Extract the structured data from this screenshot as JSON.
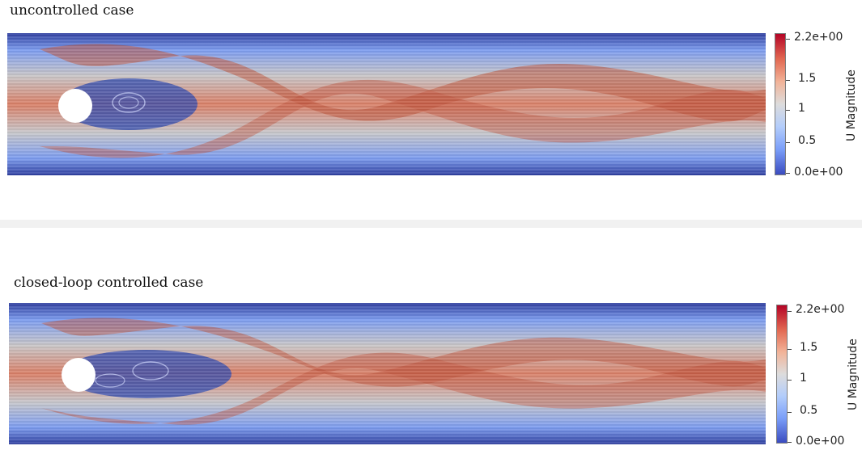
{
  "panels": [
    {
      "title": "uncontrolled case",
      "colorbar": {
        "label": "U Magnitude",
        "ticks": [
          "2.2e+00",
          "1.5",
          "1",
          "0.5",
          "0.0e+00"
        ]
      }
    },
    {
      "title": "closed-loop controlled case",
      "colorbar": {
        "label": "U Magnitude",
        "ticks": [
          "2.2e+00",
          "1.5",
          "1",
          "0.5",
          "0.0e+00"
        ]
      }
    }
  ],
  "colormap": {
    "high": "#b40426",
    "mid": "#dddcdc",
    "low": "#3b4cc0"
  }
}
